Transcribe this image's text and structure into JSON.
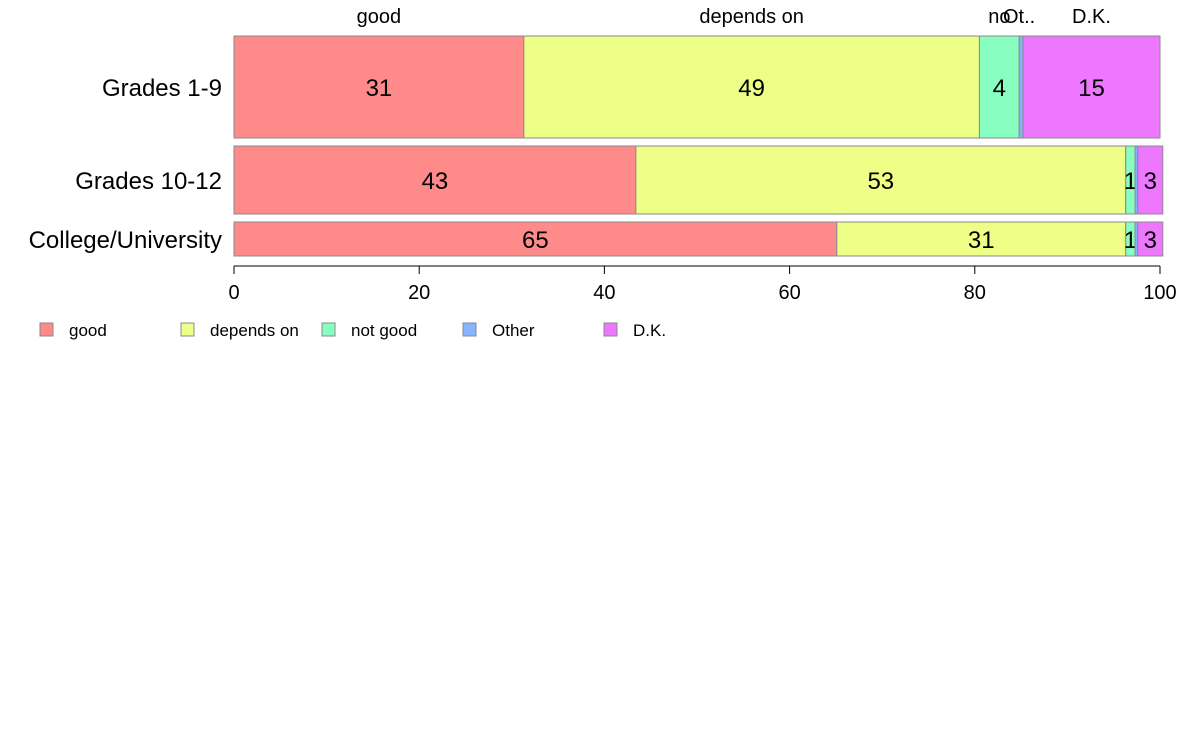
{
  "chart_data": {
    "type": "bar",
    "orientation": "horizontal",
    "stacked": true,
    "categories": [
      "Grades 1-9",
      "Grades 10-12",
      "College/University"
    ],
    "bar_weights": [
      3,
      2,
      1
    ],
    "series": [
      {
        "name": "good",
        "color": "#FF8A8A",
        "values": [
          31.3,
          43.4,
          65.1
        ],
        "labels": [
          "31",
          "43",
          "65"
        ]
      },
      {
        "name": "depends on",
        "color": "#EEFF88",
        "values": [
          49.2,
          52.9,
          31.2
        ],
        "labels": [
          "49",
          "53",
          "31"
        ]
      },
      {
        "name": "not good",
        "color": "#88FFC1",
        "values": [
          4.3,
          1.0,
          1.0
        ],
        "labels": [
          "4",
          "1",
          "1"
        ]
      },
      {
        "name": "Other",
        "color": "#88B3FF",
        "values": [
          0.4,
          0.3,
          0.3
        ],
        "labels": [
          "",
          "",
          ""
        ]
      },
      {
        "name": "D.K.",
        "color": "#EE77FF",
        "values": [
          14.8,
          2.7,
          2.7
        ],
        "labels": [
          "15",
          "3",
          "3"
        ]
      }
    ],
    "top_labels": [
      "good",
      "depends on",
      "no",
      "Ot..",
      "D.K."
    ],
    "xlim": [
      0,
      100
    ],
    "xticks": [
      0,
      20,
      40,
      60,
      80,
      100
    ],
    "grid": false,
    "legend_position": "bottom"
  }
}
